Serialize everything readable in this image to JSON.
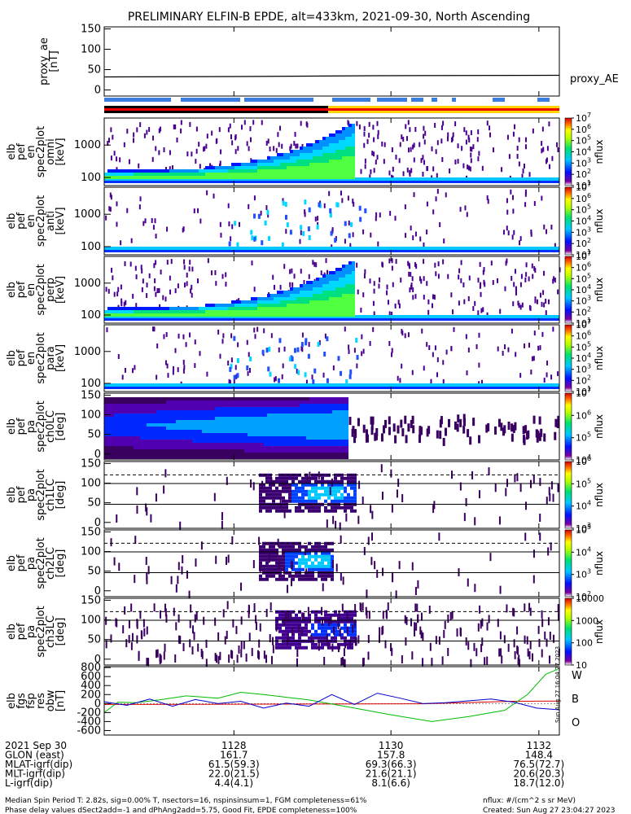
{
  "title": "PRELIMINARY ELFIN-B EPDE, alt=433km, 2021-09-30, North Ascending",
  "chart_data": [
    {
      "type": "line",
      "panel": "proxy_ae",
      "ylabel": [
        "proxy_ae",
        "[nT]"
      ],
      "yticks": [
        "150",
        "100",
        "50",
        "0"
      ],
      "ylim": [
        -15,
        155
      ],
      "series": [
        {
          "name": "proxy_AE",
          "color": "#000000",
          "x": [
            0.0,
            0.3,
            0.6,
            1.0
          ],
          "values": [
            32,
            33,
            35,
            36
          ]
        }
      ]
    },
    {
      "type": "heatmap",
      "panel": "elb pef en spec2plot omni",
      "ylabel": [
        "elb",
        "pef",
        "en",
        "spec2plot",
        "omni",
        "[keV]"
      ],
      "yticks": [
        "1000",
        "100"
      ],
      "ztitle": "nflux",
      "zticks": [
        "10^7",
        "10^6",
        "10^5",
        "10^4",
        "10^3",
        "10^2",
        "10^1"
      ]
    },
    {
      "type": "heatmap",
      "panel": "elb pef en spec2plot anti",
      "ylabel": [
        "elb",
        "pef",
        "en",
        "spec2plot",
        "anti",
        "[keV]"
      ],
      "yticks": [
        "1000",
        "100"
      ],
      "ztitle": "nflux",
      "zticks": [
        "10^7",
        "10^6",
        "10^5",
        "10^4",
        "10^3",
        "10^2",
        "10^1"
      ]
    },
    {
      "type": "heatmap",
      "panel": "elb pef en spec2plot perp",
      "ylabel": [
        "elb",
        "pef",
        "en",
        "spec2plot",
        "perp",
        "[keV]"
      ],
      "yticks": [
        "1000",
        "100"
      ],
      "ztitle": "nflux",
      "zticks": [
        "10^7",
        "10^6",
        "10^5",
        "10^4",
        "10^3",
        "10^2",
        "10^1"
      ]
    },
    {
      "type": "heatmap",
      "panel": "elb pef en spec2plot para",
      "ylabel": [
        "elb",
        "pef",
        "en",
        "spec2plot",
        "para",
        "[keV]"
      ],
      "yticks": [
        "1000",
        "100"
      ],
      "ztitle": "nflux",
      "zticks": [
        "10^7",
        "10^6",
        "10^5",
        "10^4",
        "10^3",
        "10^2",
        "10^1"
      ]
    },
    {
      "type": "heatmap",
      "panel": "elb pef pa spec2plot ch0LC",
      "ylabel": [
        "elb",
        "pef",
        "pa",
        "spec2plot",
        "ch0LC",
        "[deg]"
      ],
      "yticks": [
        "150",
        "100",
        "50",
        "0"
      ],
      "ztitle": "nflux",
      "zticks": [
        "10^7",
        "10^6",
        "10^5",
        "10^4"
      ]
    },
    {
      "type": "heatmap",
      "panel": "elb pef pa spec2plot ch1LC",
      "ylabel": [
        "elb",
        "pef",
        "pa",
        "spec2plot",
        "ch1LC",
        "[deg]"
      ],
      "yticks": [
        "150",
        "100",
        "50",
        "0"
      ],
      "ztitle": "nflux",
      "zticks": [
        "10^6",
        "10^5",
        "10^4",
        "10^3"
      ]
    },
    {
      "type": "heatmap",
      "panel": "elb pef pa spec2plot ch2LC",
      "ylabel": [
        "elb",
        "pef",
        "pa",
        "spec2plot",
        "ch2LC",
        "[deg]"
      ],
      "yticks": [
        "150",
        "100",
        "50",
        "0"
      ],
      "ztitle": "nflux",
      "zticks": [
        "10^5",
        "10^4",
        "10^3",
        "10^2"
      ]
    },
    {
      "type": "heatmap",
      "panel": "elb pef pa spec2plot ch3LC",
      "ylabel": [
        "elb",
        "pef",
        "pa",
        "spec2plot",
        "ch3LC",
        "[deg]"
      ],
      "yticks": [
        "150",
        "100",
        "50",
        "0"
      ],
      "ztitle": "nflux",
      "zticks": [
        "10000",
        "1000",
        "100",
        "10"
      ]
    },
    {
      "type": "line",
      "panel": "elb fgs fsp res obw",
      "ylabel": [
        "elb",
        "fgs",
        "fsp",
        "res",
        "obw",
        "[nT]"
      ],
      "yticks": [
        "800",
        "600",
        "400",
        "200",
        "0",
        "-200",
        "-400",
        "-600"
      ],
      "ylim": [
        -700,
        820
      ],
      "series": [
        {
          "name": "W",
          "color": "#dd0000",
          "x": [
            0.0,
            0.3,
            0.5,
            0.7,
            0.9,
            1.0
          ],
          "values": [
            -20,
            -15,
            -10,
            -5,
            50,
            55
          ]
        },
        {
          "name": "B",
          "color": "#00bb00",
          "x": [
            0.0,
            0.03,
            0.07,
            0.12,
            0.18,
            0.25,
            0.3,
            0.35,
            0.45,
            0.55,
            0.63,
            0.72,
            0.8,
            0.88,
            0.93,
            0.97,
            1.0
          ],
          "values": [
            -200,
            30,
            20,
            80,
            170,
            120,
            250,
            200,
            80,
            -100,
            -250,
            -400,
            -290,
            -150,
            200,
            650,
            780
          ]
        },
        {
          "name": "O",
          "color": "#0000cc",
          "x": [
            0.0,
            0.05,
            0.1,
            0.15,
            0.2,
            0.25,
            0.3,
            0.35,
            0.4,
            0.45,
            0.5,
            0.55,
            0.6,
            0.65,
            0.7,
            0.75,
            0.8,
            0.85,
            0.9,
            0.95,
            1.0
          ],
          "values": [
            40,
            -40,
            100,
            -60,
            90,
            0,
            50,
            -100,
            10,
            -60,
            200,
            -20,
            230,
            120,
            0,
            20,
            60,
            100,
            30,
            -100,
            -140
          ]
        }
      ]
    }
  ],
  "xaxis": {
    "ticks": [
      "1128",
      "1130",
      "1132"
    ],
    "rows": [
      {
        "label": "2021 Sep 30",
        "values": [
          "",
          "",
          ""
        ]
      },
      {
        "label": "GLON (east)",
        "values": [
          "161.7",
          "157.8",
          "148.4"
        ]
      },
      {
        "label": "MLAT-igrf(dip)",
        "values": [
          "61.5(59.3)",
          "69.3(66.3)",
          "76.5(72.7)"
        ]
      },
      {
        "label": "MLT-igrf(dip)",
        "values": [
          "22.0(21.5)",
          "21.6(21.1)",
          "20.6(20.3)"
        ]
      },
      {
        "label": "L-igrf(dip)",
        "values": [
          "4.4(4.1)",
          "8.1(6.6)",
          "18.7(12.0)"
        ]
      }
    ]
  },
  "footer": {
    "left1": "Median Spin Period T: 2.82s, sig=0.00% T, nsectors=16, nspinsinsum=1, FGM completeness=61%",
    "left2": "Phase delay values dSect2add=-1 and dPhAng2add=5.75, Good Fit, EPDE completeness=100%",
    "right1": "nflux: #/(cm^2 s sr MeV)",
    "right2": "Created: Sun Aug 27 23:04:27 2023"
  },
  "rotated_stamp": "Sun Aug 27 16:04:27 2023",
  "colors": {
    "bar_blue": "#3a7fe0",
    "bar_red": "#ee0000",
    "bar_black": "#000000",
    "bar_yellow": "#ffd200"
  }
}
